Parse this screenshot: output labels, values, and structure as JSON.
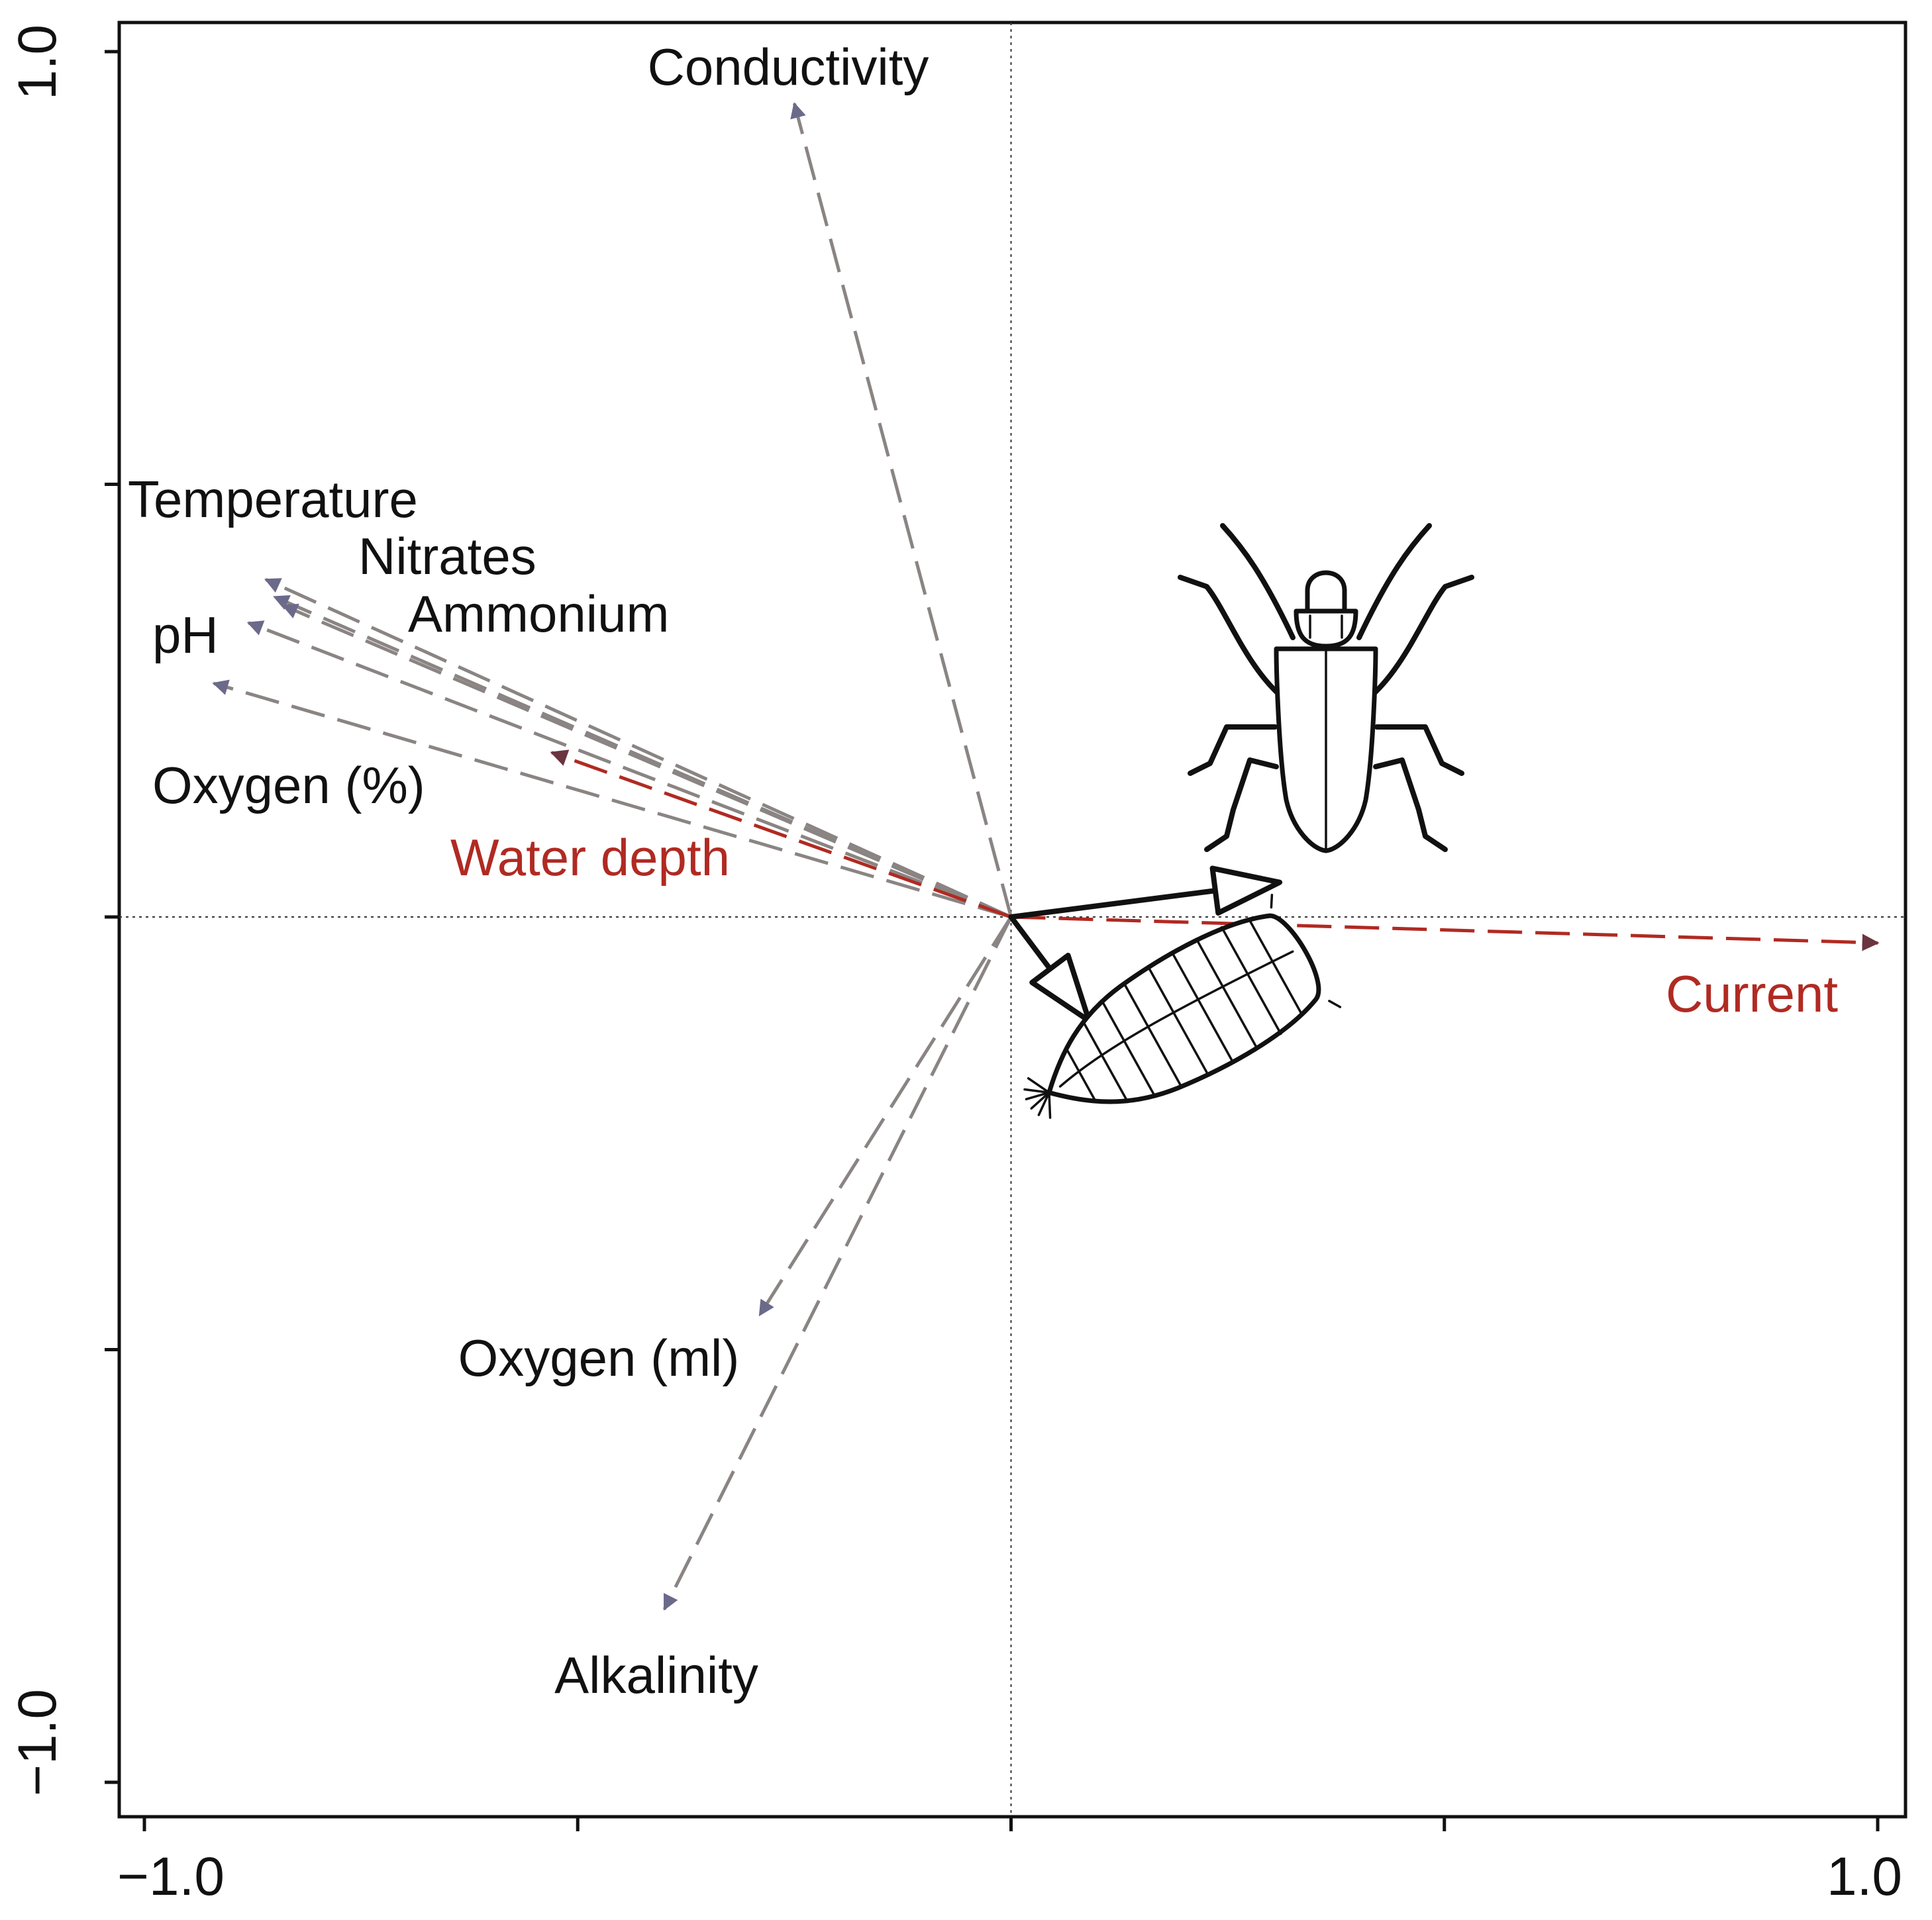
{
  "chart_data": {
    "type": "scatter",
    "subtype": "ordination-biplot",
    "title": "",
    "xlabel": "",
    "ylabel": "",
    "xlim": [
      -1.0,
      1.0
    ],
    "ylim": [
      -1.0,
      1.0
    ],
    "x_tick_labels": [
      "−1.0",
      "1.0"
    ],
    "y_tick_labels": [
      "1.0",
      "−1.0"
    ],
    "x_ticks": [
      -1.0,
      -0.5,
      0.0,
      0.5,
      1.0
    ],
    "y_ticks": [
      -1.0,
      -0.5,
      0.0,
      0.5,
      1.0
    ],
    "zero_lines": true,
    "grid": false,
    "legend": "none",
    "colors": {
      "environment_vector": "#8a8483",
      "environment_arrowhead": "#6c6a8a",
      "significant_vector": "#b02a22",
      "response_vector": "#111111",
      "text": "#111111"
    },
    "environmental_vectors": [
      {
        "name": "Conductivity",
        "x": -0.25,
        "y": 0.94,
        "significant": false
      },
      {
        "name": "Temperature",
        "x": -0.86,
        "y": 0.39,
        "significant": false
      },
      {
        "name": "Nitrates",
        "x": -0.85,
        "y": 0.37,
        "significant": false
      },
      {
        "name": "Ammonium",
        "x": -0.84,
        "y": 0.36,
        "significant": false
      },
      {
        "name": "pH",
        "x": -0.88,
        "y": 0.34,
        "significant": false
      },
      {
        "name": "Oxygen (%)",
        "x": -0.92,
        "y": 0.27,
        "significant": false
      },
      {
        "name": "Water depth",
        "x": -0.53,
        "y": 0.19,
        "significant": true
      },
      {
        "name": "Current",
        "x": 1.0,
        "y": -0.03,
        "significant": true
      },
      {
        "name": "Oxygen (ml)",
        "x": -0.29,
        "y": -0.46,
        "significant": false
      },
      {
        "name": "Alkalinity",
        "x": -0.4,
        "y": -0.8,
        "significant": false
      }
    ],
    "response_vectors": [
      {
        "name": "adult-beetle",
        "icon": "beetle-icon",
        "x": 0.31,
        "y": 0.04
      },
      {
        "name": "larva",
        "icon": "larva-icon",
        "x": 0.09,
        "y": -0.12
      }
    ]
  }
}
